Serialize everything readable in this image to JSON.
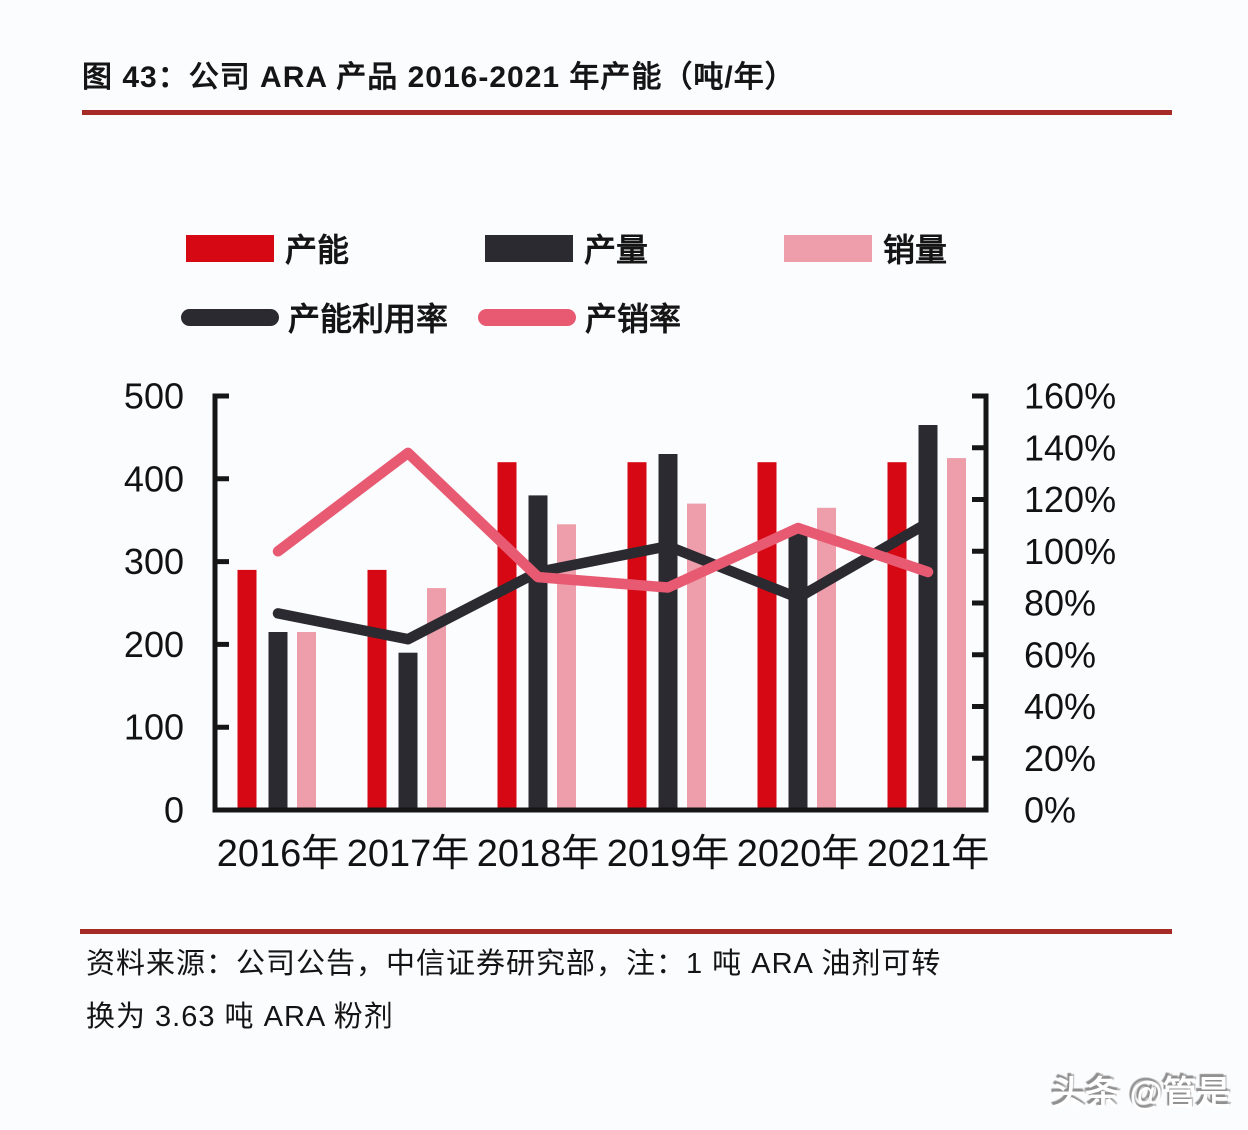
{
  "figure": {
    "title": "图 43：公司 ARA 产品 2016-2021 年产能（吨/年）",
    "source_note": {
      "line1": "资料来源：公司公告，中信证券研究部，注：1 吨 ARA 油剂可转",
      "line2": "换为 3.63 吨 ARA 粉剂"
    },
    "watermark": "头条 @管是"
  },
  "colors": {
    "capacity_red": "#D60814",
    "output_black": "#2A2A30",
    "sales_pink": "#EE9DAA",
    "utilization_line_black": "#2A2A30",
    "sell_through_line_pink": "#E75A72",
    "rule_dark_red": "#A62A26",
    "axis_black": "#161616",
    "text_black": "#121212"
  },
  "legend": {
    "row1": [
      {
        "label": "产能",
        "swatch": "bar",
        "color_key": "capacity_red"
      },
      {
        "label": "产量",
        "swatch": "bar",
        "color_key": "output_black"
      },
      {
        "label": "销量",
        "swatch": "bar",
        "color_key": "sales_pink"
      }
    ],
    "row2": [
      {
        "label": "产能利用率",
        "swatch": "line",
        "color_key": "utilization_line_black"
      },
      {
        "label": "产销率",
        "swatch": "line",
        "color_key": "sell_through_line_pink"
      }
    ]
  },
  "chart_data": {
    "type": "bar+line combo",
    "title": "公司 ARA 产品 2016-2021 年产能（吨/年）",
    "categories": [
      "2016年",
      "2017年",
      "2018年",
      "2019年",
      "2020年",
      "2021年"
    ],
    "bar_series": [
      {
        "name": "产能",
        "key": "capacity",
        "axis": "left",
        "color_key": "capacity_red",
        "values": [
          290,
          290,
          420,
          420,
          420,
          420
        ]
      },
      {
        "name": "产量",
        "key": "output",
        "axis": "left",
        "color_key": "output_black",
        "values": [
          215,
          190,
          380,
          430,
          335,
          465
        ]
      },
      {
        "name": "销量",
        "key": "sales",
        "axis": "left",
        "color_key": "sales_pink",
        "values": [
          215,
          268,
          345,
          370,
          365,
          425
        ]
      }
    ],
    "line_series": [
      {
        "name": "产能利用率",
        "key": "utilization-rate",
        "axis": "right",
        "color_key": "utilization_line_black",
        "values_pct": [
          76,
          66,
          92,
          102,
          82,
          111
        ]
      },
      {
        "name": "产销率",
        "key": "sell-through-rate",
        "axis": "right",
        "color_key": "sell_through_line_pink",
        "values_pct": [
          100,
          138,
          90,
          86,
          109,
          92
        ]
      }
    ],
    "left_axis": {
      "min": 0,
      "max": 500,
      "ticks": [
        0,
        100,
        200,
        300,
        400,
        500
      ]
    },
    "right_axis": {
      "min": 0,
      "max": 160,
      "ticks": [
        0,
        20,
        40,
        60,
        80,
        100,
        120,
        140,
        160
      ],
      "suffix": "%"
    },
    "legend_position": "top",
    "grid": false
  }
}
